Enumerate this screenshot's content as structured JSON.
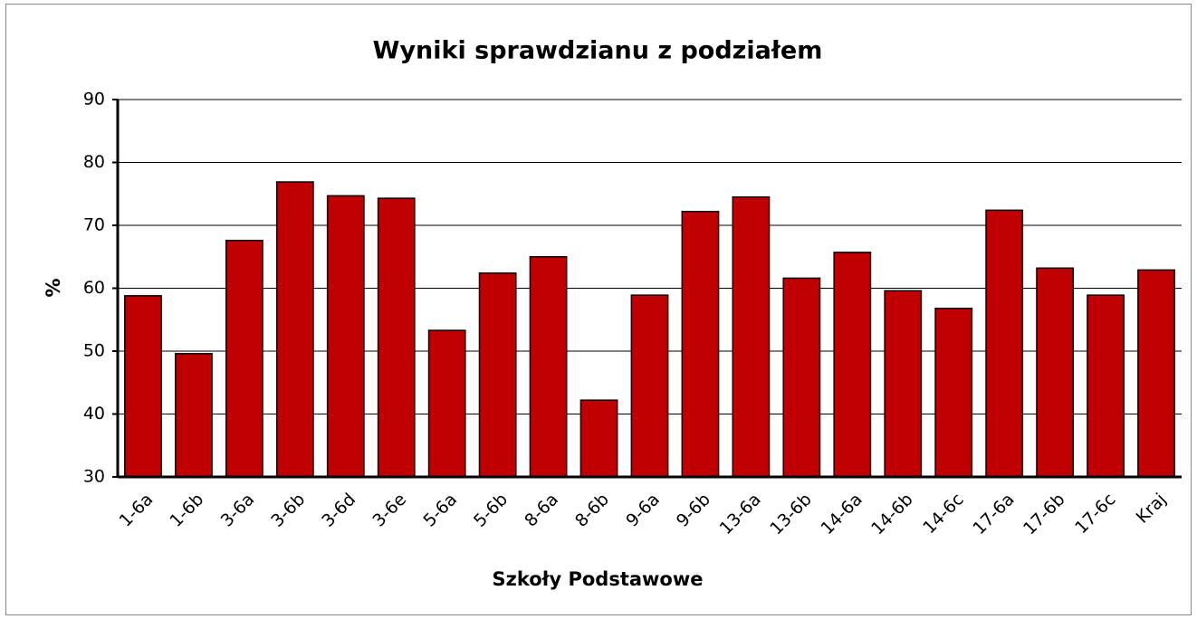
{
  "chart_data": {
    "type": "bar",
    "title": "Wyniki sprawdzianu z podziałem",
    "x_label": "Szkoły Podstawowe",
    "y_label": "%",
    "categories": [
      "1-6a",
      "1-6b",
      "3-6a",
      "3-6b",
      "3-6d",
      "3-6e",
      "5-6a",
      "5-6b",
      "8-6a",
      "8-6b",
      "9-6a",
      "9-6b",
      "13-6a",
      "13-6b",
      "14-6a",
      "14-6b",
      "14-6c",
      "17-6a",
      "17-6b",
      "17-6c",
      "Kraj"
    ],
    "values": [
      58.8,
      49.6,
      67.6,
      76.9,
      74.7,
      74.3,
      53.3,
      62.4,
      65.0,
      42.2,
      58.9,
      72.2,
      74.5,
      61.6,
      65.7,
      59.6,
      56.8,
      72.4,
      63.2,
      58.9,
      62.9
    ],
    "color": "#c00000",
    "ylim": [
      30,
      90
    ],
    "yticks": [
      30,
      40,
      50,
      60,
      70,
      80,
      90
    ],
    "grid": true
  }
}
